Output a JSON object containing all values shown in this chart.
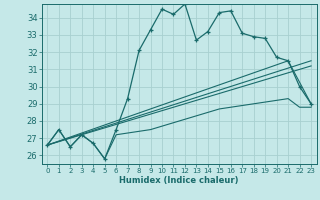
{
  "xlabel": "Humidex (Indice chaleur)",
  "xlim": [
    -0.5,
    23.5
  ],
  "ylim": [
    25.5,
    34.8
  ],
  "xticks": [
    0,
    1,
    2,
    3,
    4,
    5,
    6,
    7,
    8,
    9,
    10,
    11,
    12,
    13,
    14,
    15,
    16,
    17,
    18,
    19,
    20,
    21,
    22,
    23
  ],
  "yticks": [
    26,
    27,
    28,
    29,
    30,
    31,
    32,
    33,
    34
  ],
  "bg_color": "#c5e8e8",
  "grid_color": "#a8d0d0",
  "line_color": "#1a6b6b",
  "curve_main_x": [
    0,
    1,
    2,
    3,
    4,
    5,
    6,
    7,
    8,
    9,
    10,
    11,
    12,
    13,
    14,
    15,
    16,
    17,
    18,
    19,
    20,
    21,
    22,
    23
  ],
  "curve_main_y": [
    26.6,
    27.5,
    26.5,
    27.2,
    26.7,
    25.8,
    27.5,
    29.3,
    32.1,
    33.3,
    34.5,
    34.2,
    34.8,
    32.7,
    33.2,
    34.3,
    34.4,
    33.1,
    32.9,
    32.8,
    31.7,
    31.5,
    30.0,
    29.0
  ],
  "curve_bottom_x": [
    0,
    1,
    2,
    3,
    4,
    5,
    6,
    7,
    8,
    9,
    10,
    11,
    12,
    13,
    14,
    15,
    16,
    17,
    18,
    19,
    20,
    21,
    22,
    23
  ],
  "curve_bottom_y": [
    26.6,
    27.5,
    26.5,
    27.2,
    26.7,
    25.8,
    27.2,
    27.3,
    27.4,
    27.5,
    27.7,
    27.9,
    28.1,
    28.3,
    28.5,
    28.7,
    28.8,
    28.9,
    29.0,
    29.1,
    29.2,
    29.3,
    28.8,
    28.8
  ],
  "line1_x": [
    0,
    23
  ],
  "line1_y": [
    26.6,
    31.5
  ],
  "line2_x": [
    0,
    23
  ],
  "line2_y": [
    26.6,
    31.2
  ],
  "line3_x": [
    0,
    21,
    23
  ],
  "line3_y": [
    26.6,
    31.5,
    29.0
  ]
}
